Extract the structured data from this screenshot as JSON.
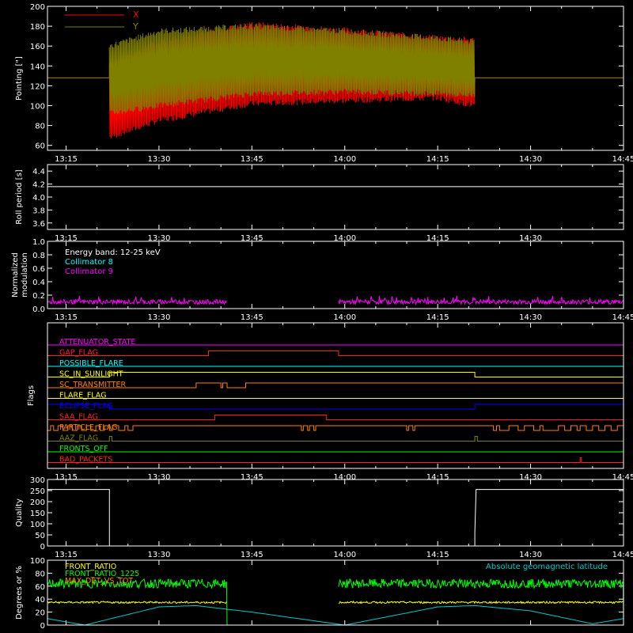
{
  "chart_data": [
    {
      "type": "line",
      "id": "pointing",
      "ylabel": "Pointing [\"]",
      "yticks": [
        60,
        80,
        100,
        120,
        140,
        160,
        180,
        200
      ],
      "ylim": [
        55,
        200
      ],
      "xticks": [
        "13:15",
        "13:30",
        "13:45",
        "14:00",
        "14:15",
        "14:30",
        "14:45"
      ],
      "xlim_minutes": [
        0,
        96
      ],
      "grid": false,
      "legend_position": "top-left",
      "series": [
        {
          "name": "X",
          "color": "#ff0000",
          "baseline": 128,
          "active_range": [
            "13:22",
            "14:21"
          ],
          "envelope_time": [
            "13:22",
            "13:30",
            "13:45",
            "14:00",
            "14:15",
            "14:21"
          ],
          "envelope_upper": [
            142,
            165,
            182,
            176,
            168,
            166
          ],
          "envelope_lower": [
            68,
            85,
            102,
            105,
            108,
            100
          ]
        },
        {
          "name": "Y",
          "color": "#808000",
          "baseline": 128,
          "active_range": [
            "13:22",
            "14:21"
          ],
          "envelope_time": [
            "13:22",
            "13:30",
            "13:45",
            "14:00",
            "14:15",
            "14:21"
          ],
          "envelope_upper": [
            160,
            175,
            180,
            175,
            168,
            164
          ],
          "envelope_lower": [
            92,
            100,
            112,
            114,
            112,
            110
          ]
        }
      ]
    },
    {
      "type": "line",
      "id": "roll",
      "ylabel": "Roll period [s]",
      "yticks": [
        "3.6",
        "3.8",
        "4.0",
        "4.2",
        "4.4"
      ],
      "ylim": [
        3.5,
        4.5
      ],
      "xticks": [
        "13:15",
        "13:30",
        "13:45",
        "14:00",
        "14:15",
        "14:30"
      ],
      "series": [
        {
          "color": "#ffffff",
          "value": 4.16
        }
      ]
    },
    {
      "type": "line",
      "id": "modulation",
      "ylabel": "Normalized modulation",
      "yticks": [
        "0.0",
        "0.2",
        "0.4",
        "0.6",
        "0.8",
        "1.0"
      ],
      "ylim": [
        0,
        1
      ],
      "xticks": [
        "13:15",
        "13:30",
        "13:45",
        "14:00",
        "14:15",
        "14:30",
        "14:45"
      ],
      "annotation": "Energy band: 12-25 keV",
      "series": [
        {
          "name": "Collimator 8",
          "color": "#00ffff"
        },
        {
          "name": "Collimator 9",
          "color": "#ff00ff",
          "level": 0.1,
          "segments": [
            [
              "13:12",
              "13:41"
            ],
            [
              "13:59",
              "14:45"
            ]
          ]
        }
      ]
    },
    {
      "type": "line",
      "id": "flags",
      "ylabel": "Flags",
      "xticks": [
        "13:15",
        "13:30",
        "13:45",
        "14:00",
        "14:15",
        "14:30",
        "14:45"
      ],
      "series": [
        {
          "name": "ATTENUATOR_STATE",
          "color": "#ff00ff",
          "transitions": [],
          "initial": 0
        },
        {
          "name": "GAP_FLAG",
          "color": "#ff2020",
          "transitions": [
            "13:38",
            "13:59"
          ],
          "initial": 0
        },
        {
          "name": "POSSIBLE_FLARE",
          "color": "#00ffff",
          "transitions": [],
          "initial": 0
        },
        {
          "name": "SC_IN_SUNLIGHT",
          "color": "#ffff00",
          "transitions": [
            "13:22",
            "14:21"
          ],
          "initial": 0
        },
        {
          "name": "SC_TRANSMITTER",
          "color": "#ff8000",
          "transitions": [
            "13:36",
            "13:40",
            "13:40.3",
            "13:41",
            "13:44"
          ],
          "initial": 0
        },
        {
          "name": "FLARE_FLAG",
          "color": "#ffff00",
          "transitions": [],
          "initial": 0
        },
        {
          "name": "ECLIPSE_FLAG",
          "color": "#0000ff",
          "transitions": [
            "13:22",
            "14:21"
          ],
          "initial": 1
        },
        {
          "name": "SAA_FLAG",
          "color": "#ff2020",
          "transitions": [
            "13:39",
            "13:57"
          ],
          "initial": 0
        },
        {
          "name": "PARTICLE_FLAG",
          "color": "#ff8000",
          "transitions": [
            "13:12",
            "13:12.5",
            "13:13",
            "13:13.7",
            "13:14.5",
            "13:15.3",
            "13:16",
            "13:16.8",
            "13:17.5",
            "13:18.3",
            "13:19",
            "13:19.8",
            "13:20.5",
            "13:21.2",
            "13:22",
            "13:22.5",
            "13:23.5",
            "13:24.5",
            "13:25",
            "13:25.8",
            "13:53",
            "13:53.3",
            "13:54",
            "13:54.3",
            "13:55",
            "13:55.3",
            "14:10",
            "14:10.3",
            "14:11",
            "14:11.3",
            "14:24",
            "14:24.5",
            "14:25",
            "14:26.5",
            "14:28",
            "14:29",
            "14:30.5",
            "14:31.5",
            "14:32",
            "14:34.5",
            "14:35.5",
            "14:36.5",
            "14:37.5",
            "14:38",
            "14:39",
            "14:40",
            "14:41",
            "14:42",
            "14:43",
            "14:44"
          ],
          "initial": 1
        },
        {
          "name": "AAZ_FLAG",
          "color": "#808000",
          "transitions": [
            "13:22",
            "13:22.4",
            "14:21",
            "14:21.4"
          ],
          "initial": 0
        },
        {
          "name": "FRONTS_OFF",
          "color": "#00ff00",
          "transitions": [],
          "initial": 0
        },
        {
          "name": "BAD_PACKETS",
          "color": "#ff2020",
          "transitions": [
            "14:38",
            "14:38.2"
          ],
          "initial": 0
        }
      ]
    },
    {
      "type": "line",
      "id": "quality",
      "ylabel": "Quality",
      "yticks": [
        0,
        50,
        100,
        150,
        200,
        250,
        300
      ],
      "ylim": [
        0,
        300
      ],
      "xticks": [
        "13:15",
        "13:30",
        "13:45",
        "14:00",
        "14:15",
        "14:30",
        "14:45"
      ],
      "series": [
        {
          "color": "#ffffff",
          "points": [
            [
              "13:12",
              255
            ],
            [
              "13:22",
              255
            ],
            [
              "13:22",
              0
            ],
            [
              "14:21",
              0
            ],
            [
              "14:21",
              60
            ],
            [
              "14:21.2",
              255
            ],
            [
              "14:45",
              255
            ]
          ]
        }
      ]
    },
    {
      "type": "line",
      "id": "ratios",
      "ylabel": "Degrees or %",
      "yticks": [
        0,
        20,
        40,
        60,
        80,
        100
      ],
      "ylim": [
        0,
        100
      ],
      "xticks": [],
      "annotation": "Absolute geomagnetic latitude",
      "series": [
        {
          "name": "FRONT_RATIO",
          "color": "#ffff00",
          "level": 35,
          "segments": [
            [
              "13:12",
              "13:41"
            ],
            [
              "13:59",
              "14:45"
            ]
          ]
        },
        {
          "name": "FRONT_RATIO_1225",
          "color": "#00ff00",
          "level": 64,
          "segments": [
            [
              "13:12",
              "13:41"
            ],
            [
              "13:59",
              "14:45"
            ]
          ]
        },
        {
          "name": "MAX_DET_VS_TOT",
          "color": "#ff8000",
          "level": 0,
          "segments": [
            [
              "13:12",
              "14:45"
            ]
          ]
        },
        {
          "name": "Absolute geomagnetic latitude",
          "color": "#00c8c8",
          "points": [
            [
              "13:12",
              10
            ],
            [
              "13:18",
              0
            ],
            [
              "13:30",
              28
            ],
            [
              "13:36",
              30
            ],
            [
              "13:45",
              20
            ],
            [
              "14:00",
              0
            ],
            [
              "14:15",
              28
            ],
            [
              "14:21",
              30
            ],
            [
              "14:30",
              22
            ],
            [
              "14:40",
              2
            ],
            [
              "14:45",
              10
            ]
          ]
        }
      ]
    }
  ]
}
